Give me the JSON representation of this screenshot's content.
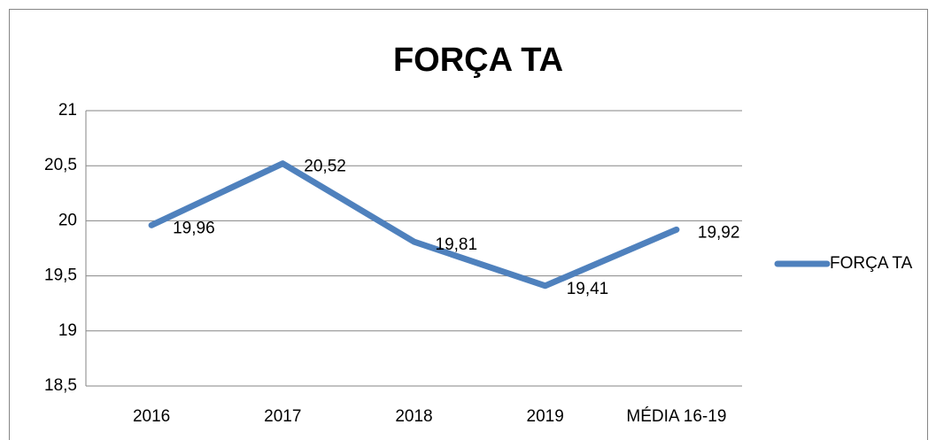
{
  "chart_data": {
    "type": "line",
    "title": "FORÇA TA",
    "categories": [
      "2016",
      "2017",
      "2018",
      "2019",
      "MÉDIA 16-19"
    ],
    "series": [
      {
        "name": "FORÇA TA",
        "color": "#4f81bd",
        "values": [
          19.96,
          20.52,
          19.81,
          19.41,
          19.92
        ],
        "value_labels": [
          "19,96",
          "20,52",
          "19,81",
          "19,41",
          "19,92"
        ]
      }
    ],
    "ylim": [
      18.5,
      21
    ],
    "yticks": [
      {
        "value": 18.5,
        "label": "18,5"
      },
      19,
      {
        "value": 19.5,
        "label": "19,5"
      },
      20,
      {
        "value": 20.5,
        "label": "20,5"
      },
      21
    ],
    "grid": true,
    "legend": "right"
  }
}
